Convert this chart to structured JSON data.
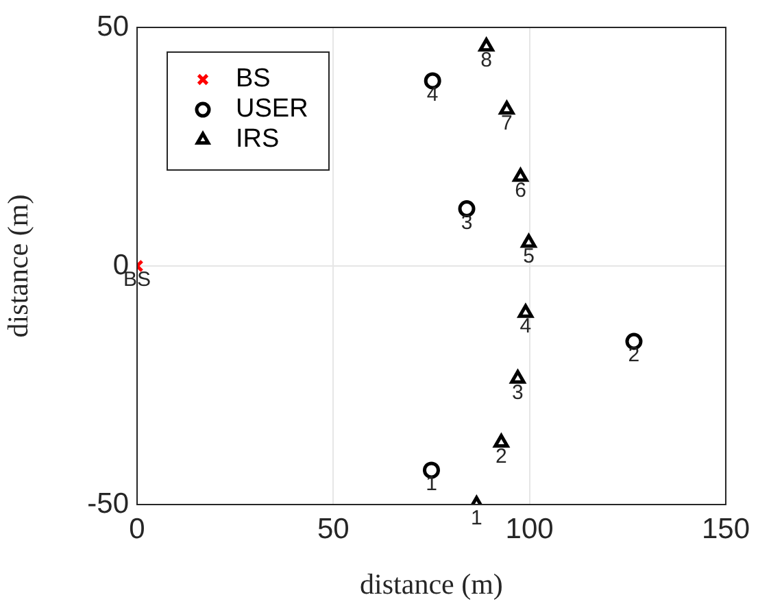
{
  "chart_data": {
    "type": "scatter",
    "xlabel": "distance (m)",
    "ylabel": "distance (m)",
    "xlim": [
      0,
      150
    ],
    "ylim": [
      -50,
      50
    ],
    "xticks": [
      0,
      50,
      100,
      150
    ],
    "yticks": [
      -50,
      0,
      50
    ],
    "grid": true,
    "legend": "top left",
    "series": [
      {
        "name": "BS",
        "color": "#ff0000",
        "marker": "cross",
        "x": [
          0
        ],
        "values": [
          0
        ]
      },
      {
        "name": "USER",
        "color": "#000000",
        "marker": "circle",
        "x": [
          75,
          126.6,
          84,
          75.3
        ],
        "values": [
          -42.8,
          -15.8,
          12,
          38.8
        ]
      },
      {
        "name": "IRS",
        "color": "#000000",
        "marker": "triangle",
        "x": [
          86.5,
          92.8,
          97,
          99,
          99.8,
          97.7,
          94.2,
          89
        ],
        "values": [
          -50,
          -37,
          -23.6,
          -9.8,
          4.9,
          18.7,
          32.8,
          46
        ]
      }
    ],
    "annotations": [
      {
        "text": "BS",
        "x": 0,
        "y": 0
      },
      {
        "text": "1",
        "x": 75,
        "y": -42.8
      },
      {
        "text": "2",
        "x": 126.6,
        "y": -15.8
      },
      {
        "text": "3",
        "x": 84,
        "y": 12
      },
      {
        "text": "4",
        "x": 75.3,
        "y": 38.8
      },
      {
        "text": "1",
        "x": 86.5,
        "y": -50
      },
      {
        "text": "2",
        "x": 92.8,
        "y": -37
      },
      {
        "text": "3",
        "x": 97,
        "y": -23.6
      },
      {
        "text": "4",
        "x": 99,
        "y": -9.8
      },
      {
        "text": "5",
        "x": 99.8,
        "y": 4.9
      },
      {
        "text": "6",
        "x": 97.7,
        "y": 18.7
      },
      {
        "text": "7",
        "x": 94.2,
        "y": 32.8
      },
      {
        "text": "8",
        "x": 89,
        "y": 46
      }
    ]
  }
}
